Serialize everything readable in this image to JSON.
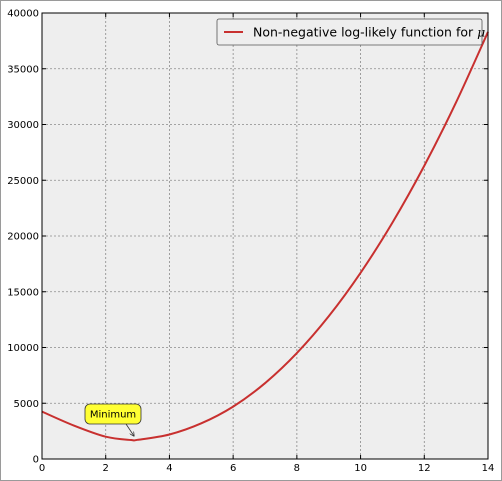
{
  "chart_data": {
    "type": "line",
    "title": "",
    "xlabel": "",
    "ylabel": "",
    "xlim": [
      0,
      14
    ],
    "ylim": [
      0,
      40000
    ],
    "x_ticks": [
      "0",
      "2",
      "4",
      "6",
      "8",
      "10",
      "12",
      "14"
    ],
    "y_ticks": [
      "0",
      "5000",
      "10000",
      "15000",
      "20000",
      "25000",
      "30000",
      "35000",
      "40000"
    ],
    "grid": true,
    "legend_position": "top-right",
    "series": [
      {
        "name": "Non-negative log-likely function for",
        "name_symbol": "μ",
        "color": "#c8302f",
        "x": [
          0,
          1,
          2,
          2.8,
          3,
          4,
          5,
          6,
          7,
          8,
          9,
          10,
          11,
          12,
          13,
          14
        ],
        "y": [
          4250,
          3000,
          2000,
          1700,
          1720,
          2200,
          3200,
          4700,
          6800,
          9500,
          12800,
          16700,
          21200,
          26300,
          32000,
          38300
        ]
      }
    ],
    "annotation": {
      "text": "Minimum",
      "point": [
        2.8,
        1700
      ],
      "box_color": "#ffff33"
    }
  }
}
